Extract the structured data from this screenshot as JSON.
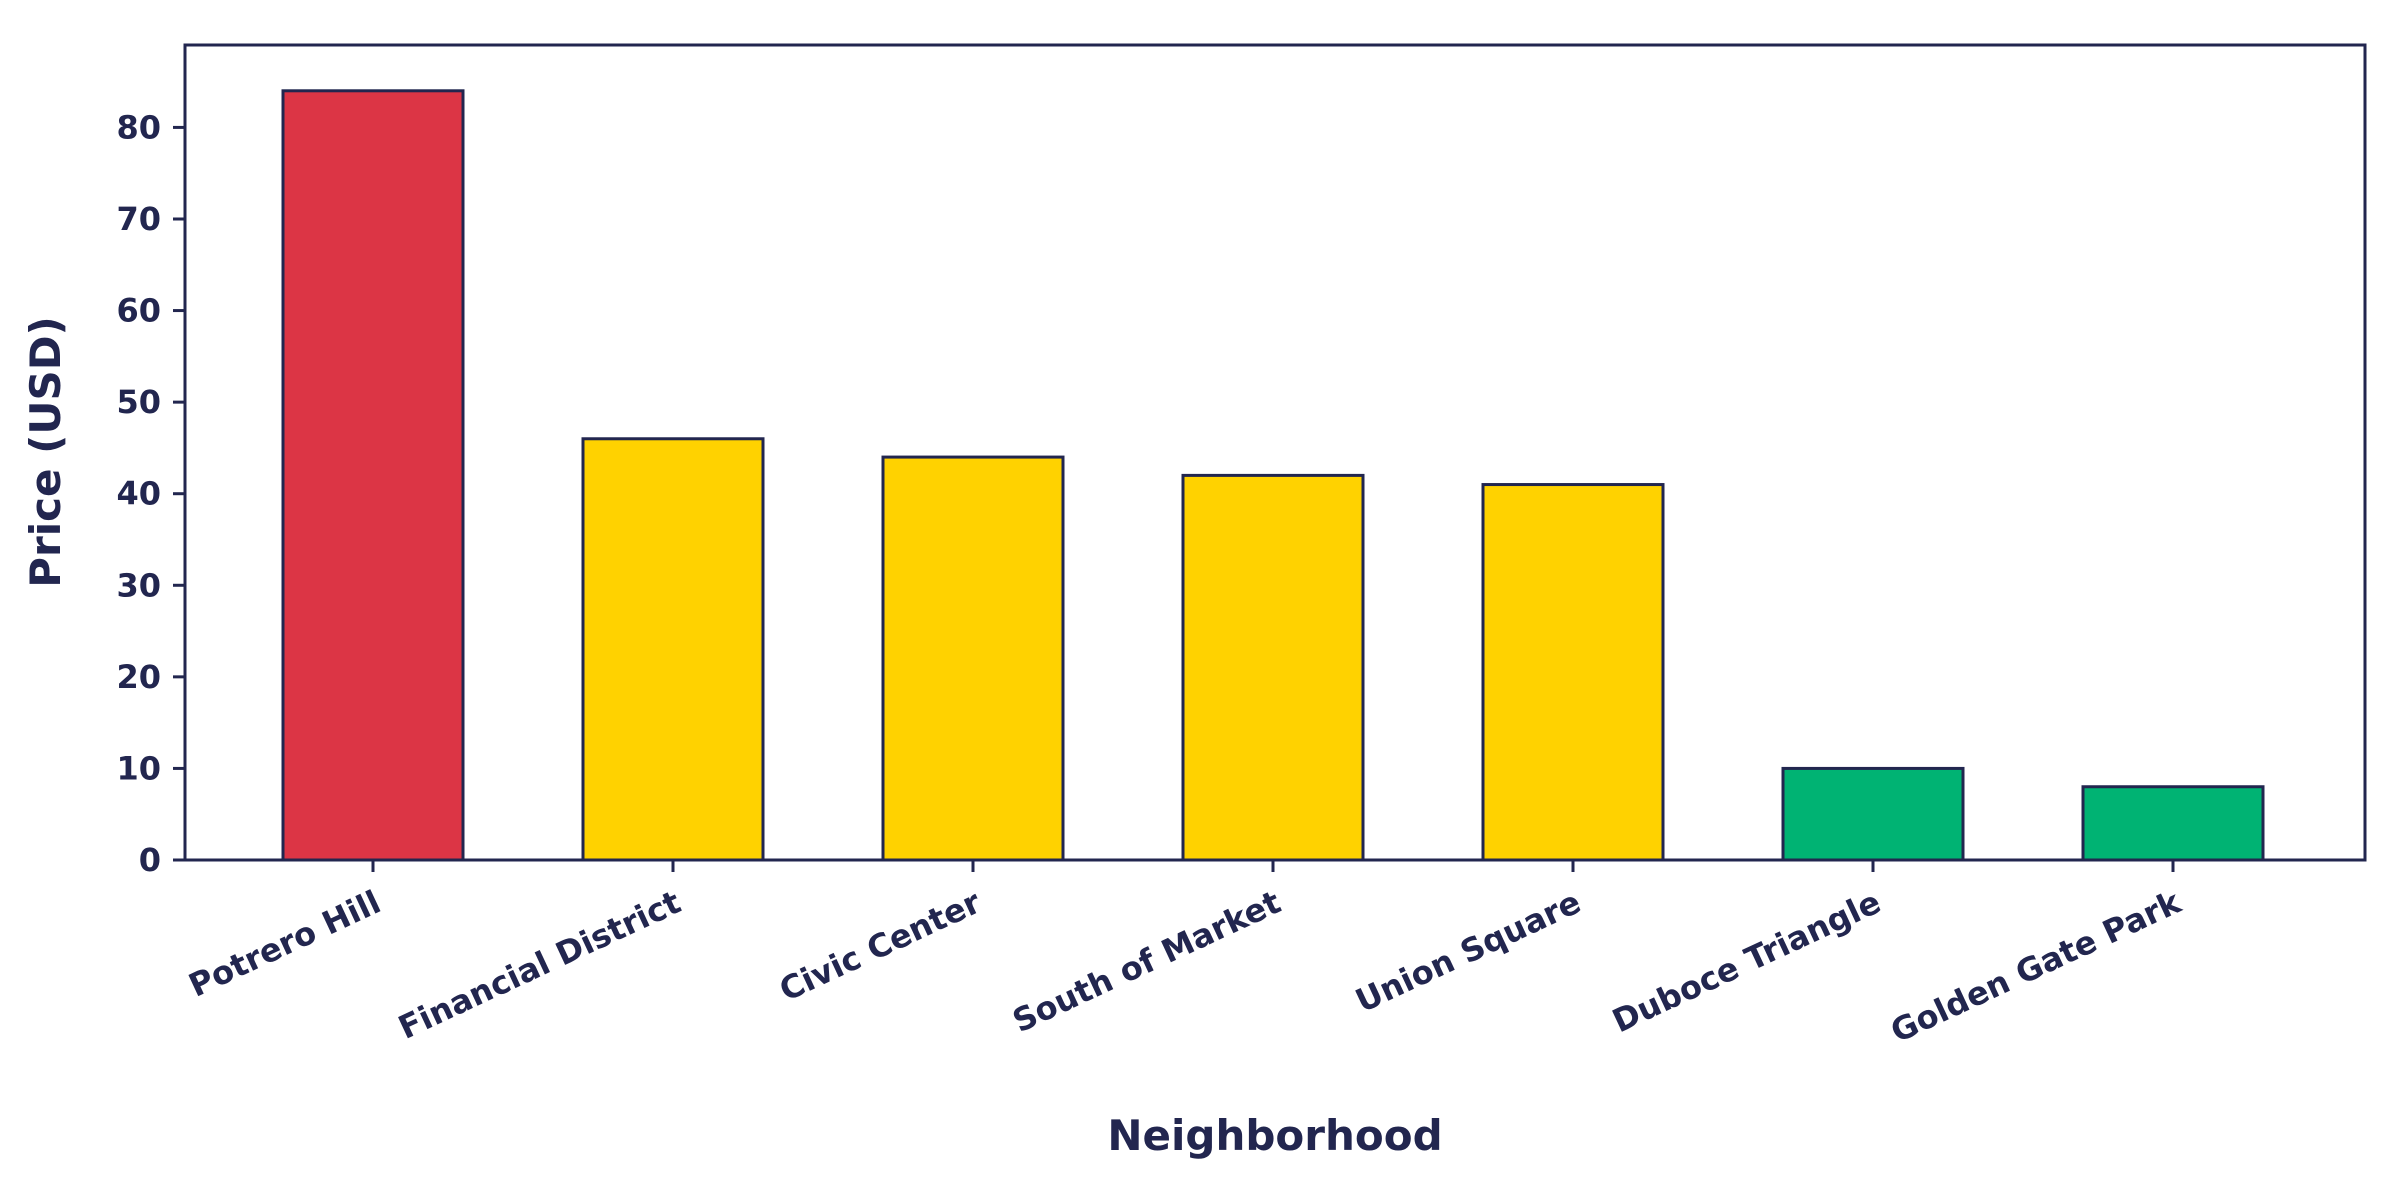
{
  "chart_data": {
    "type": "bar",
    "title": "",
    "xlabel": "Neighborhood",
    "ylabel": "Price (USD)",
    "categories": [
      "Potrero Hill",
      "Financial District",
      "Civic Center",
      "South of Market",
      "Union Square",
      "Duboce Triangle",
      "Golden Gate Park"
    ],
    "values": [
      84,
      46,
      44,
      42,
      41,
      10,
      8
    ],
    "bar_colors": [
      "#dc3545",
      "#ffd200",
      "#ffd200",
      "#ffd200",
      "#ffd200",
      "#00b373",
      "#00b373"
    ],
    "ylim": [
      0,
      89
    ],
    "yticks": [
      0,
      10,
      20,
      30,
      40,
      50,
      60,
      70,
      80
    ],
    "grid": false,
    "legend": "none"
  },
  "colors": {
    "ink": "#22264f",
    "background": "#ffffff"
  }
}
